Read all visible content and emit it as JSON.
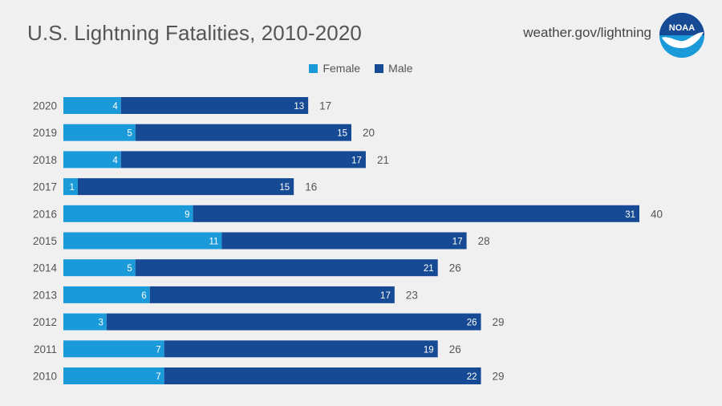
{
  "header": {
    "title": "U.S. Lightning Fatalities, 2010-2020",
    "source_url": "weather.gov/lightning",
    "logo_text": "NOAA"
  },
  "colors": {
    "female": "#1a9ad9",
    "male": "#174a94",
    "background": "#f0f0f0",
    "text": "#555555"
  },
  "chart_data": {
    "type": "bar",
    "orientation": "horizontal",
    "stacked": true,
    "title": "U.S. Lightning Fatalities, 2010-2020",
    "categories": [
      "2020",
      "2019",
      "2018",
      "2017",
      "2016",
      "2015",
      "2014",
      "2013",
      "2012",
      "2011",
      "2010"
    ],
    "series": [
      {
        "name": "Female",
        "values": [
          4,
          5,
          4,
          1,
          9,
          11,
          5,
          6,
          3,
          7,
          7
        ]
      },
      {
        "name": "Male",
        "values": [
          13,
          15,
          17,
          15,
          31,
          17,
          21,
          17,
          26,
          19,
          22
        ]
      }
    ],
    "totals": [
      17,
      20,
      21,
      16,
      40,
      28,
      26,
      23,
      29,
      26,
      29
    ],
    "xlim": [
      0,
      40
    ],
    "grid": false,
    "legend_position": "top-center"
  }
}
